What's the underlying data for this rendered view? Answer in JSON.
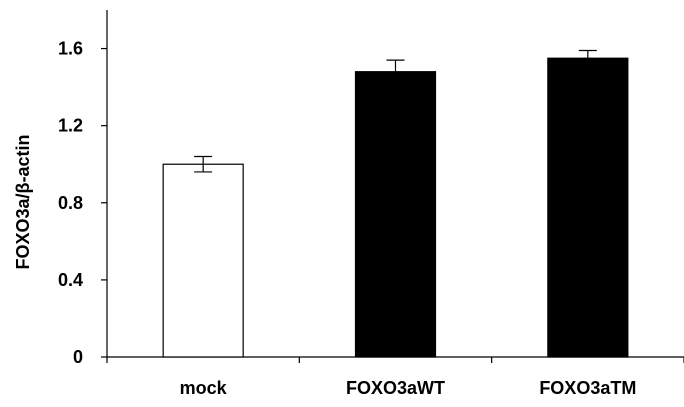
{
  "chart_data": {
    "type": "bar",
    "title": "",
    "xlabel": "",
    "ylabel": "FOXO3a/β-actin",
    "categories": [
      "mock",
      "FOXO3aWT",
      "FOXO3aTM"
    ],
    "values": [
      1.0,
      1.48,
      1.55
    ],
    "error": [
      0.04,
      0.06,
      0.04
    ],
    "bar_fill": [
      "#ffffff",
      "#000000",
      "#000000"
    ],
    "ylim": [
      0,
      1.8
    ],
    "yticks": [
      0,
      0.4,
      0.8,
      1.2,
      1.6
    ],
    "ytick_labels": [
      "0",
      "0.4",
      "0.8",
      "1.2",
      "1.6"
    ],
    "grid": false,
    "legend": "none"
  }
}
